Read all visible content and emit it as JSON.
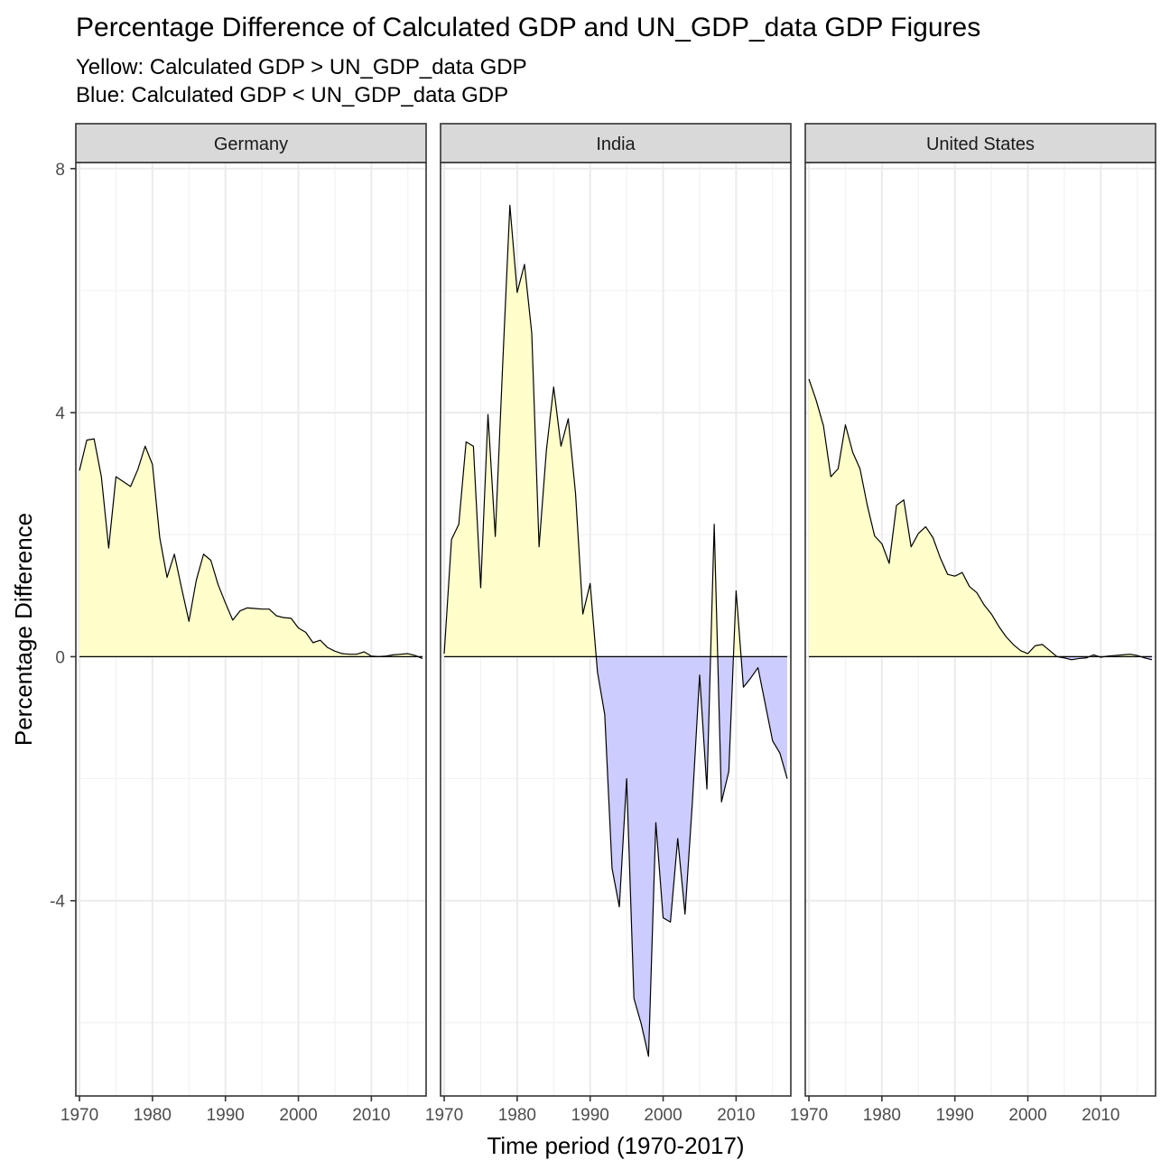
{
  "chart_data": {
    "type": "area",
    "title": "Percentage Difference of Calculated GDP and UN_GDP_data GDP Figures",
    "subtitle_lines": [
      "Yellow: Calculated GDP > UN_GDP_data GDP",
      "Blue: Calculated GDP < UN_GDP_data GDP"
    ],
    "xlabel": "Time period (1970-2017)",
    "ylabel": "Percentage Difference",
    "x_ticks": [
      1970,
      1980,
      1990,
      2000,
      2010
    ],
    "y_ticks": [
      -4,
      0,
      4,
      8
    ],
    "xlim": [
      1969.5,
      2017.5
    ],
    "ylim": [
      -7.2,
      8.1
    ],
    "grid": true,
    "colors": {
      "positive_fill": "#FFFFCC",
      "negative_fill": "#CCCCFF",
      "line": "#000000",
      "strip_bg": "#D9D9D9",
      "grid_major": "#EBEBEB",
      "grid_minor": "#F2F2F2"
    },
    "facets": [
      {
        "name": "Germany",
        "x": [
          1970,
          1971,
          1972,
          1973,
          1974,
          1975,
          1976,
          1977,
          1978,
          1979,
          1980,
          1981,
          1982,
          1983,
          1984,
          1985,
          1986,
          1987,
          1988,
          1989,
          1990,
          1991,
          1992,
          1993,
          1994,
          1995,
          1996,
          1997,
          1998,
          1999,
          2000,
          2001,
          2002,
          2003,
          2004,
          2005,
          2006,
          2007,
          2008,
          2009,
          2010,
          2011,
          2012,
          2013,
          2014,
          2015,
          2016,
          2017
        ],
        "values": [
          3.05,
          3.55,
          3.57,
          2.95,
          1.78,
          2.95,
          2.87,
          2.79,
          3.07,
          3.45,
          3.15,
          1.95,
          1.3,
          1.68,
          1.12,
          0.58,
          1.25,
          1.68,
          1.58,
          1.18,
          0.88,
          0.6,
          0.75,
          0.8,
          0.79,
          0.78,
          0.78,
          0.67,
          0.64,
          0.63,
          0.47,
          0.4,
          0.23,
          0.27,
          0.15,
          0.09,
          0.05,
          0.04,
          0.04,
          0.08,
          0.01,
          0.0,
          0.01,
          0.03,
          0.04,
          0.05,
          0.02,
          -0.03
        ]
      },
      {
        "name": "India",
        "x": [
          1970,
          1971,
          1972,
          1973,
          1974,
          1975,
          1976,
          1977,
          1978,
          1979,
          1980,
          1981,
          1982,
          1983,
          1984,
          1985,
          1986,
          1987,
          1988,
          1989,
          1990,
          1991,
          1992,
          1993,
          1994,
          1995,
          1996,
          1997,
          1998,
          1999,
          2000,
          2001,
          2002,
          2003,
          2004,
          2005,
          2006,
          2007,
          2008,
          2009,
          2010,
          2011,
          2012,
          2013,
          2014,
          2015,
          2016,
          2017
        ],
        "values": [
          0.05,
          1.92,
          2.17,
          3.52,
          3.45,
          1.13,
          3.97,
          1.97,
          4.75,
          7.4,
          5.97,
          6.43,
          5.3,
          1.8,
          3.38,
          4.42,
          3.45,
          3.9,
          2.67,
          0.7,
          1.2,
          -0.25,
          -0.95,
          -3.47,
          -4.1,
          -2.0,
          -5.6,
          -6.02,
          -6.55,
          -2.72,
          -4.28,
          -4.35,
          -2.98,
          -4.22,
          -2.4,
          -0.3,
          -2.17,
          2.17,
          -2.38,
          -1.88,
          1.08,
          -0.5,
          -0.35,
          -0.18,
          -0.78,
          -1.38,
          -1.58,
          -2.0
        ]
      },
      {
        "name": "United States",
        "x": [
          1970,
          1971,
          1972,
          1973,
          1974,
          1975,
          1976,
          1977,
          1978,
          1979,
          1980,
          1981,
          1982,
          1983,
          1984,
          1985,
          1986,
          1987,
          1988,
          1989,
          1990,
          1991,
          1992,
          1993,
          1994,
          1995,
          1996,
          1997,
          1998,
          1999,
          2000,
          2001,
          2002,
          2003,
          2004,
          2005,
          2006,
          2007,
          2008,
          2009,
          2010,
          2011,
          2012,
          2013,
          2014,
          2015,
          2016,
          2017
        ],
        "values": [
          4.55,
          4.2,
          3.78,
          2.95,
          3.08,
          3.8,
          3.35,
          3.08,
          2.48,
          1.98,
          1.85,
          1.53,
          2.48,
          2.57,
          1.8,
          2.02,
          2.13,
          1.95,
          1.62,
          1.35,
          1.32,
          1.38,
          1.15,
          1.05,
          0.85,
          0.7,
          0.5,
          0.33,
          0.2,
          0.1,
          0.05,
          0.18,
          0.2,
          0.1,
          0.0,
          -0.02,
          -0.05,
          -0.03,
          -0.02,
          0.03,
          -0.01,
          0.01,
          0.02,
          0.03,
          0.04,
          0.02,
          -0.02,
          -0.05
        ]
      }
    ]
  }
}
